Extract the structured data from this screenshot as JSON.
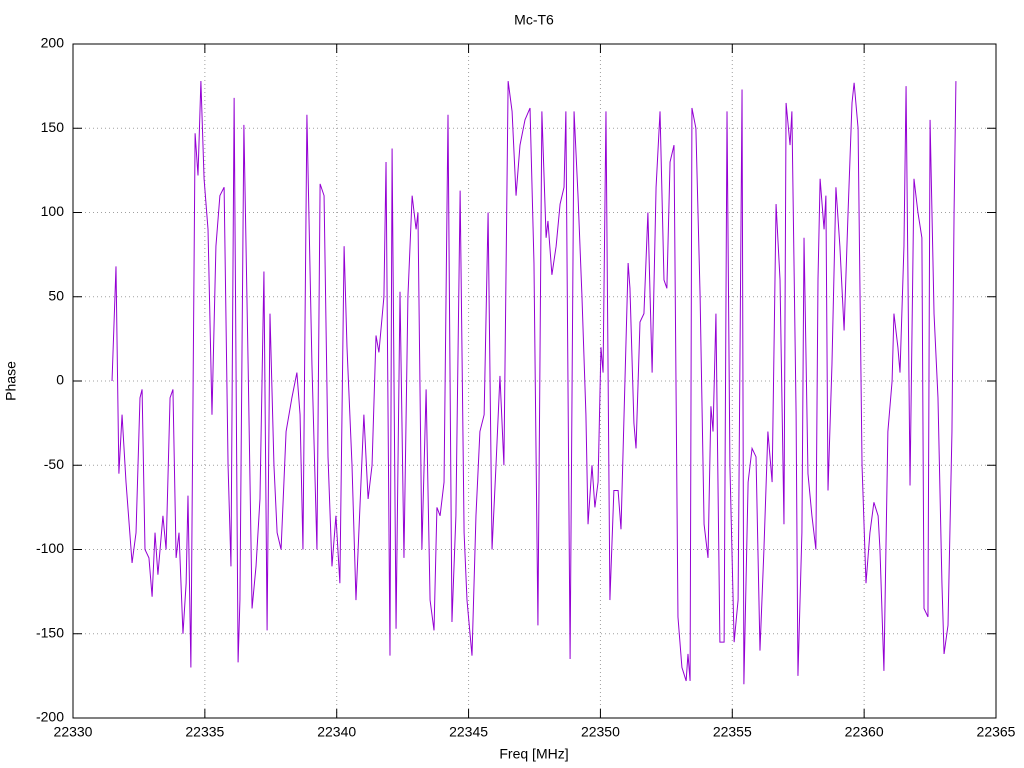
{
  "chart_data": {
    "type": "line",
    "title": "Mc-T6",
    "x_label": "Freq [MHz]",
    "y_label": "Phase",
    "color": "#9400d3",
    "grid": true,
    "xlim": [
      22330,
      22365
    ],
    "xticks": [
      22330,
      22335,
      22340,
      22345,
      22350,
      22355,
      22360,
      22365
    ],
    "ylim": [
      -200,
      200
    ],
    "yticks": [
      -200,
      -150,
      -100,
      -50,
      0,
      50,
      100,
      150,
      200
    ],
    "x": [
      22331.48,
      22331.63,
      22331.74,
      22331.86,
      22332.01,
      22332.24,
      22332.39,
      22332.54,
      22332.62,
      22332.73,
      22332.88,
      22333.0,
      22333.11,
      22333.22,
      22333.41,
      22333.53,
      22333.68,
      22333.79,
      22333.91,
      22334.02,
      22334.17,
      22334.29,
      22334.36,
      22334.47,
      22334.63,
      22334.74,
      22334.85,
      22334.97,
      22335.12,
      22335.27,
      22335.42,
      22335.57,
      22335.73,
      22335.88,
      22335.99,
      22336.11,
      22336.26,
      22336.33,
      22336.48,
      22336.64,
      22336.79,
      22336.94,
      22337.09,
      22337.24,
      22337.36,
      22337.47,
      22337.62,
      22337.74,
      22337.89,
      22338.08,
      22338.3,
      22338.49,
      22338.61,
      22338.72,
      22338.87,
      22339.06,
      22339.25,
      22339.37,
      22339.52,
      22339.67,
      22339.82,
      22339.97,
      22340.12,
      22340.28,
      22340.39,
      22340.58,
      22340.73,
      22340.88,
      22341.03,
      22341.19,
      22341.34,
      22341.49,
      22341.6,
      22341.79,
      22341.87,
      22342.02,
      22342.1,
      22342.25,
      22342.4,
      22342.55,
      22342.7,
      22342.86,
      22343.01,
      22343.08,
      22343.23,
      22343.39,
      22343.54,
      22343.69,
      22343.8,
      22343.92,
      22344.07,
      22344.22,
      22344.37,
      22344.52,
      22344.68,
      22344.83,
      22344.94,
      22345.13,
      22345.28,
      22345.43,
      22345.59,
      22345.74,
      22345.89,
      22346.04,
      22346.19,
      22346.34,
      22346.5,
      22346.65,
      22346.8,
      22346.95,
      22347.14,
      22347.33,
      22347.48,
      22347.63,
      22347.78,
      22347.94,
      22348.01,
      22348.16,
      22348.32,
      22348.47,
      22348.62,
      22348.69,
      22348.85,
      22349.0,
      22349.15,
      22349.3,
      22349.45,
      22349.53,
      22349.68,
      22349.79,
      22349.91,
      22350.02,
      22350.1,
      22350.21,
      22350.36,
      22350.51,
      22350.67,
      22350.78,
      22350.93,
      22351.05,
      22351.12,
      22351.27,
      22351.35,
      22351.5,
      22351.65,
      22351.8,
      22351.96,
      22352.11,
      22352.26,
      22352.41,
      22352.52,
      22352.64,
      22352.79,
      22352.94,
      22353.09,
      22353.25,
      22353.32,
      22353.4,
      22353.47,
      22353.62,
      22353.78,
      22353.93,
      22354.08,
      22354.19,
      22354.27,
      22354.38,
      22354.53,
      22354.69,
      22354.8,
      22354.91,
      22355.07,
      22355.22,
      22355.37,
      22355.44,
      22355.6,
      22355.75,
      22355.9,
      22356.05,
      22356.2,
      22356.35,
      22356.51,
      22356.66,
      22356.81,
      22356.96,
      22357.04,
      22357.19,
      22357.26,
      22357.42,
      22357.49,
      22357.64,
      22357.72,
      22357.87,
      22358.02,
      22358.17,
      22358.25,
      22358.33,
      22358.48,
      22358.55,
      22358.63,
      22358.78,
      22358.93,
      22359.08,
      22359.24,
      22359.39,
      22359.54,
      22359.62,
      22359.77,
      22359.92,
      22360.07,
      22360.22,
      22360.37,
      22360.53,
      22360.6,
      22360.75,
      22360.9,
      22361.06,
      22361.13,
      22361.28,
      22361.36,
      22361.51,
      22361.59,
      22361.74,
      22361.89,
      22362.04,
      22362.19,
      22362.27,
      22362.42,
      22362.5,
      22362.65,
      22362.8,
      22362.95,
      22363.03,
      22363.18,
      22363.33,
      22363.41,
      22363.48
    ],
    "values": [
      0,
      68,
      -55,
      -20,
      -60,
      -108,
      -90,
      -10,
      -5,
      -100,
      -105,
      -128,
      -90,
      -115,
      -80,
      -100,
      -10,
      -5,
      -105,
      -90,
      -150,
      -120,
      -68,
      -170,
      147,
      122,
      178,
      120,
      90,
      -20,
      80,
      110,
      115,
      -50,
      -110,
      168,
      -167,
      -130,
      152,
      10,
      -135,
      -110,
      -70,
      65,
      -148,
      40,
      -50,
      -90,
      -100,
      -30,
      -10,
      5,
      -20,
      -100,
      158,
      10,
      -100,
      117,
      110,
      -45,
      -110,
      -80,
      -120,
      80,
      20,
      -50,
      -130,
      -75,
      -20,
      -70,
      -50,
      27,
      17,
      50,
      130,
      -163,
      138,
      -147,
      53,
      -105,
      50,
      110,
      90,
      100,
      -100,
      -5,
      -130,
      -148,
      -75,
      -80,
      -60,
      158,
      -143,
      -80,
      113,
      -90,
      -130,
      -163,
      -80,
      -30,
      -20,
      100,
      -100,
      -50,
      3,
      -50,
      178,
      160,
      110,
      140,
      155,
      162,
      70,
      -145,
      160,
      85,
      95,
      63,
      80,
      105,
      115,
      160,
      -165,
      160,
      110,
      50,
      -20,
      -85,
      -50,
      -75,
      -60,
      20,
      5,
      160,
      -130,
      -65,
      -65,
      -88,
      0,
      70,
      55,
      -25,
      -40,
      35,
      40,
      100,
      5,
      115,
      160,
      60,
      55,
      130,
      140,
      -140,
      -170,
      -178,
      -162,
      -178,
      162,
      150,
      50,
      -85,
      -105,
      -15,
      -30,
      40,
      -155,
      -155,
      160,
      -50,
      -155,
      -130,
      173,
      -180,
      -60,
      -40,
      -45,
      -160,
      -100,
      -30,
      -60,
      105,
      60,
      -85,
      165,
      140,
      160,
      -20,
      -175,
      -90,
      85,
      -55,
      -80,
      -100,
      60,
      120,
      90,
      110,
      -65,
      10,
      115,
      80,
      30,
      100,
      165,
      177,
      150,
      -50,
      -120,
      -90,
      -72,
      -80,
      -100,
      -172,
      -30,
      0,
      40,
      20,
      5,
      80,
      175,
      -62,
      120,
      100,
      85,
      -135,
      -140,
      155,
      40,
      -10,
      -120,
      -162,
      -145,
      -30,
      100,
      178
    ]
  }
}
